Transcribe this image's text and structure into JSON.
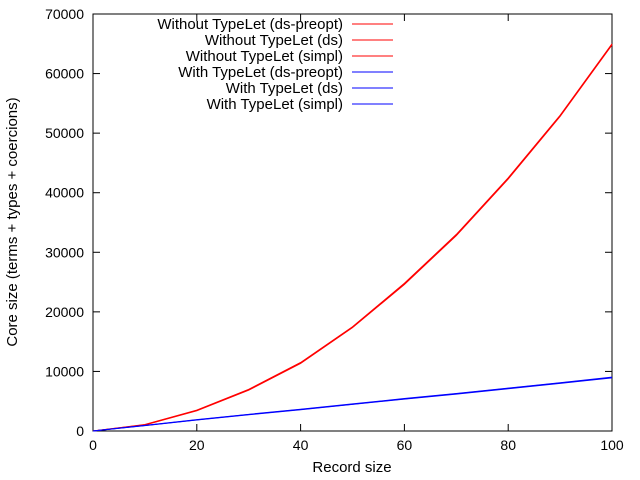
{
  "chart_data": {
    "type": "line",
    "title": "",
    "xlabel": "Record size",
    "ylabel": "Core size (terms + types + coercions)",
    "xlim": [
      0,
      100
    ],
    "ylim": [
      0,
      70000
    ],
    "x_ticks": [
      "0",
      "20",
      "40",
      "60",
      "80",
      "100"
    ],
    "y_ticks": [
      "0",
      "10000",
      "20000",
      "30000",
      "40000",
      "50000",
      "60000",
      "70000"
    ],
    "grid": false,
    "legend_position": "top-left",
    "x": [
      0,
      10,
      20,
      30,
      40,
      50,
      60,
      70,
      80,
      90,
      100
    ],
    "series": [
      {
        "name": "Without TypeLet (ds-preopt)",
        "color": "#ff0000",
        "values": [
          0,
          1100,
          3500,
          7000,
          11500,
          17500,
          24800,
          33000,
          42500,
          53000,
          65000
        ]
      },
      {
        "name": "Without TypeLet (ds)",
        "color": "#ff0000",
        "values": [
          0,
          1050,
          3450,
          6900,
          11400,
          17400,
          24700,
          32900,
          42400,
          52900,
          64900
        ]
      },
      {
        "name": "Without TypeLet (simpl)",
        "color": "#ff0000",
        "values": [
          0,
          1000,
          3400,
          6850,
          11350,
          17350,
          24600,
          32800,
          42300,
          52800,
          64800
        ]
      },
      {
        "name": "With TypeLet (ds-preopt)",
        "color": "#0000ff",
        "values": [
          0,
          950,
          1900,
          2800,
          3650,
          4550,
          5450,
          6300,
          7200,
          8100,
          9050
        ]
      },
      {
        "name": "With TypeLet (ds)",
        "color": "#0000ff",
        "values": [
          0,
          930,
          1870,
          2760,
          3610,
          4500,
          5400,
          6250,
          7150,
          8050,
          8980
        ]
      },
      {
        "name": "With TypeLet (simpl)",
        "color": "#0000ff",
        "values": [
          0,
          900,
          1840,
          2720,
          3570,
          4460,
          5350,
          6200,
          7100,
          8000,
          8920
        ]
      }
    ]
  }
}
